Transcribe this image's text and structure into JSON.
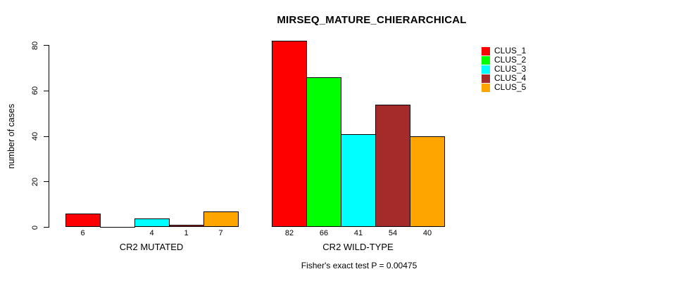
{
  "page": {
    "background": "#ffffff"
  },
  "chart_data": {
    "type": "bar",
    "title": "MIRSEQ_MATURE_CHIERARCHICAL",
    "ylabel": "number of cases",
    "xlabel": "",
    "footnote": "Fisher's exact test P = 0.00475",
    "ylim": [
      0,
      80
    ],
    "yticks": [
      0,
      20,
      40,
      60,
      80
    ],
    "grid": false,
    "legend_position": "top-right-inside",
    "categories": [
      "CR2 MUTATED",
      "CR2 WILD-TYPE"
    ],
    "series": [
      {
        "name": "CLUS_1",
        "color": "#FF0000",
        "values": [
          6,
          82
        ]
      },
      {
        "name": "CLUS_2",
        "color": "#00FF00",
        "values": [
          0,
          66
        ]
      },
      {
        "name": "CLUS_3",
        "color": "#00FFFF",
        "values": [
          4,
          41
        ]
      },
      {
        "name": "CLUS_4",
        "color": "#A52A2A",
        "values": [
          1,
          54
        ]
      },
      {
        "name": "CLUS_5",
        "color": "#FFA500",
        "values": [
          7,
          40
        ]
      }
    ],
    "bar_value_labels": [
      [
        "6",
        "",
        "4",
        "1",
        "7"
      ],
      [
        "82",
        "66",
        "41",
        "54",
        "40"
      ]
    ]
  }
}
